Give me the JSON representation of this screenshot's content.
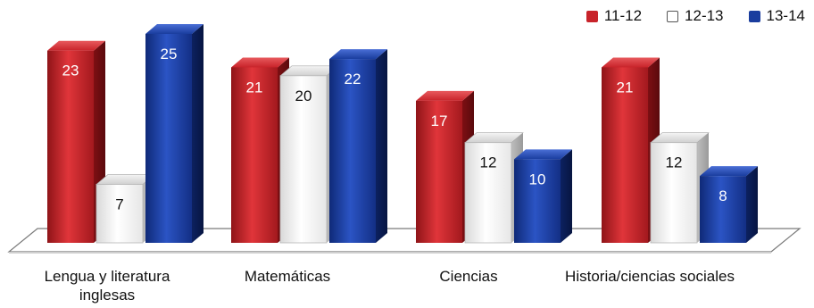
{
  "chart_data": {
    "type": "bar",
    "categories": [
      "Lengua y literatura inglesas",
      "Matemáticas",
      "Ciencias",
      "Historia/ciencias sociales"
    ],
    "series": [
      {
        "name": "11-12",
        "values": [
          23,
          21,
          17,
          21
        ],
        "color": "#c8232a"
      },
      {
        "name": "12-13",
        "values": [
          7,
          20,
          12,
          12
        ],
        "color": "#ffffff"
      },
      {
        "name": "13-14",
        "values": [
          25,
          22,
          10,
          8
        ],
        "color": "#1a3d9e"
      }
    ],
    "title": "",
    "xlabel": "",
    "ylabel": "",
    "ylim": [
      0,
      27
    ],
    "grid": false,
    "legend": "top-right",
    "style": "3d"
  }
}
